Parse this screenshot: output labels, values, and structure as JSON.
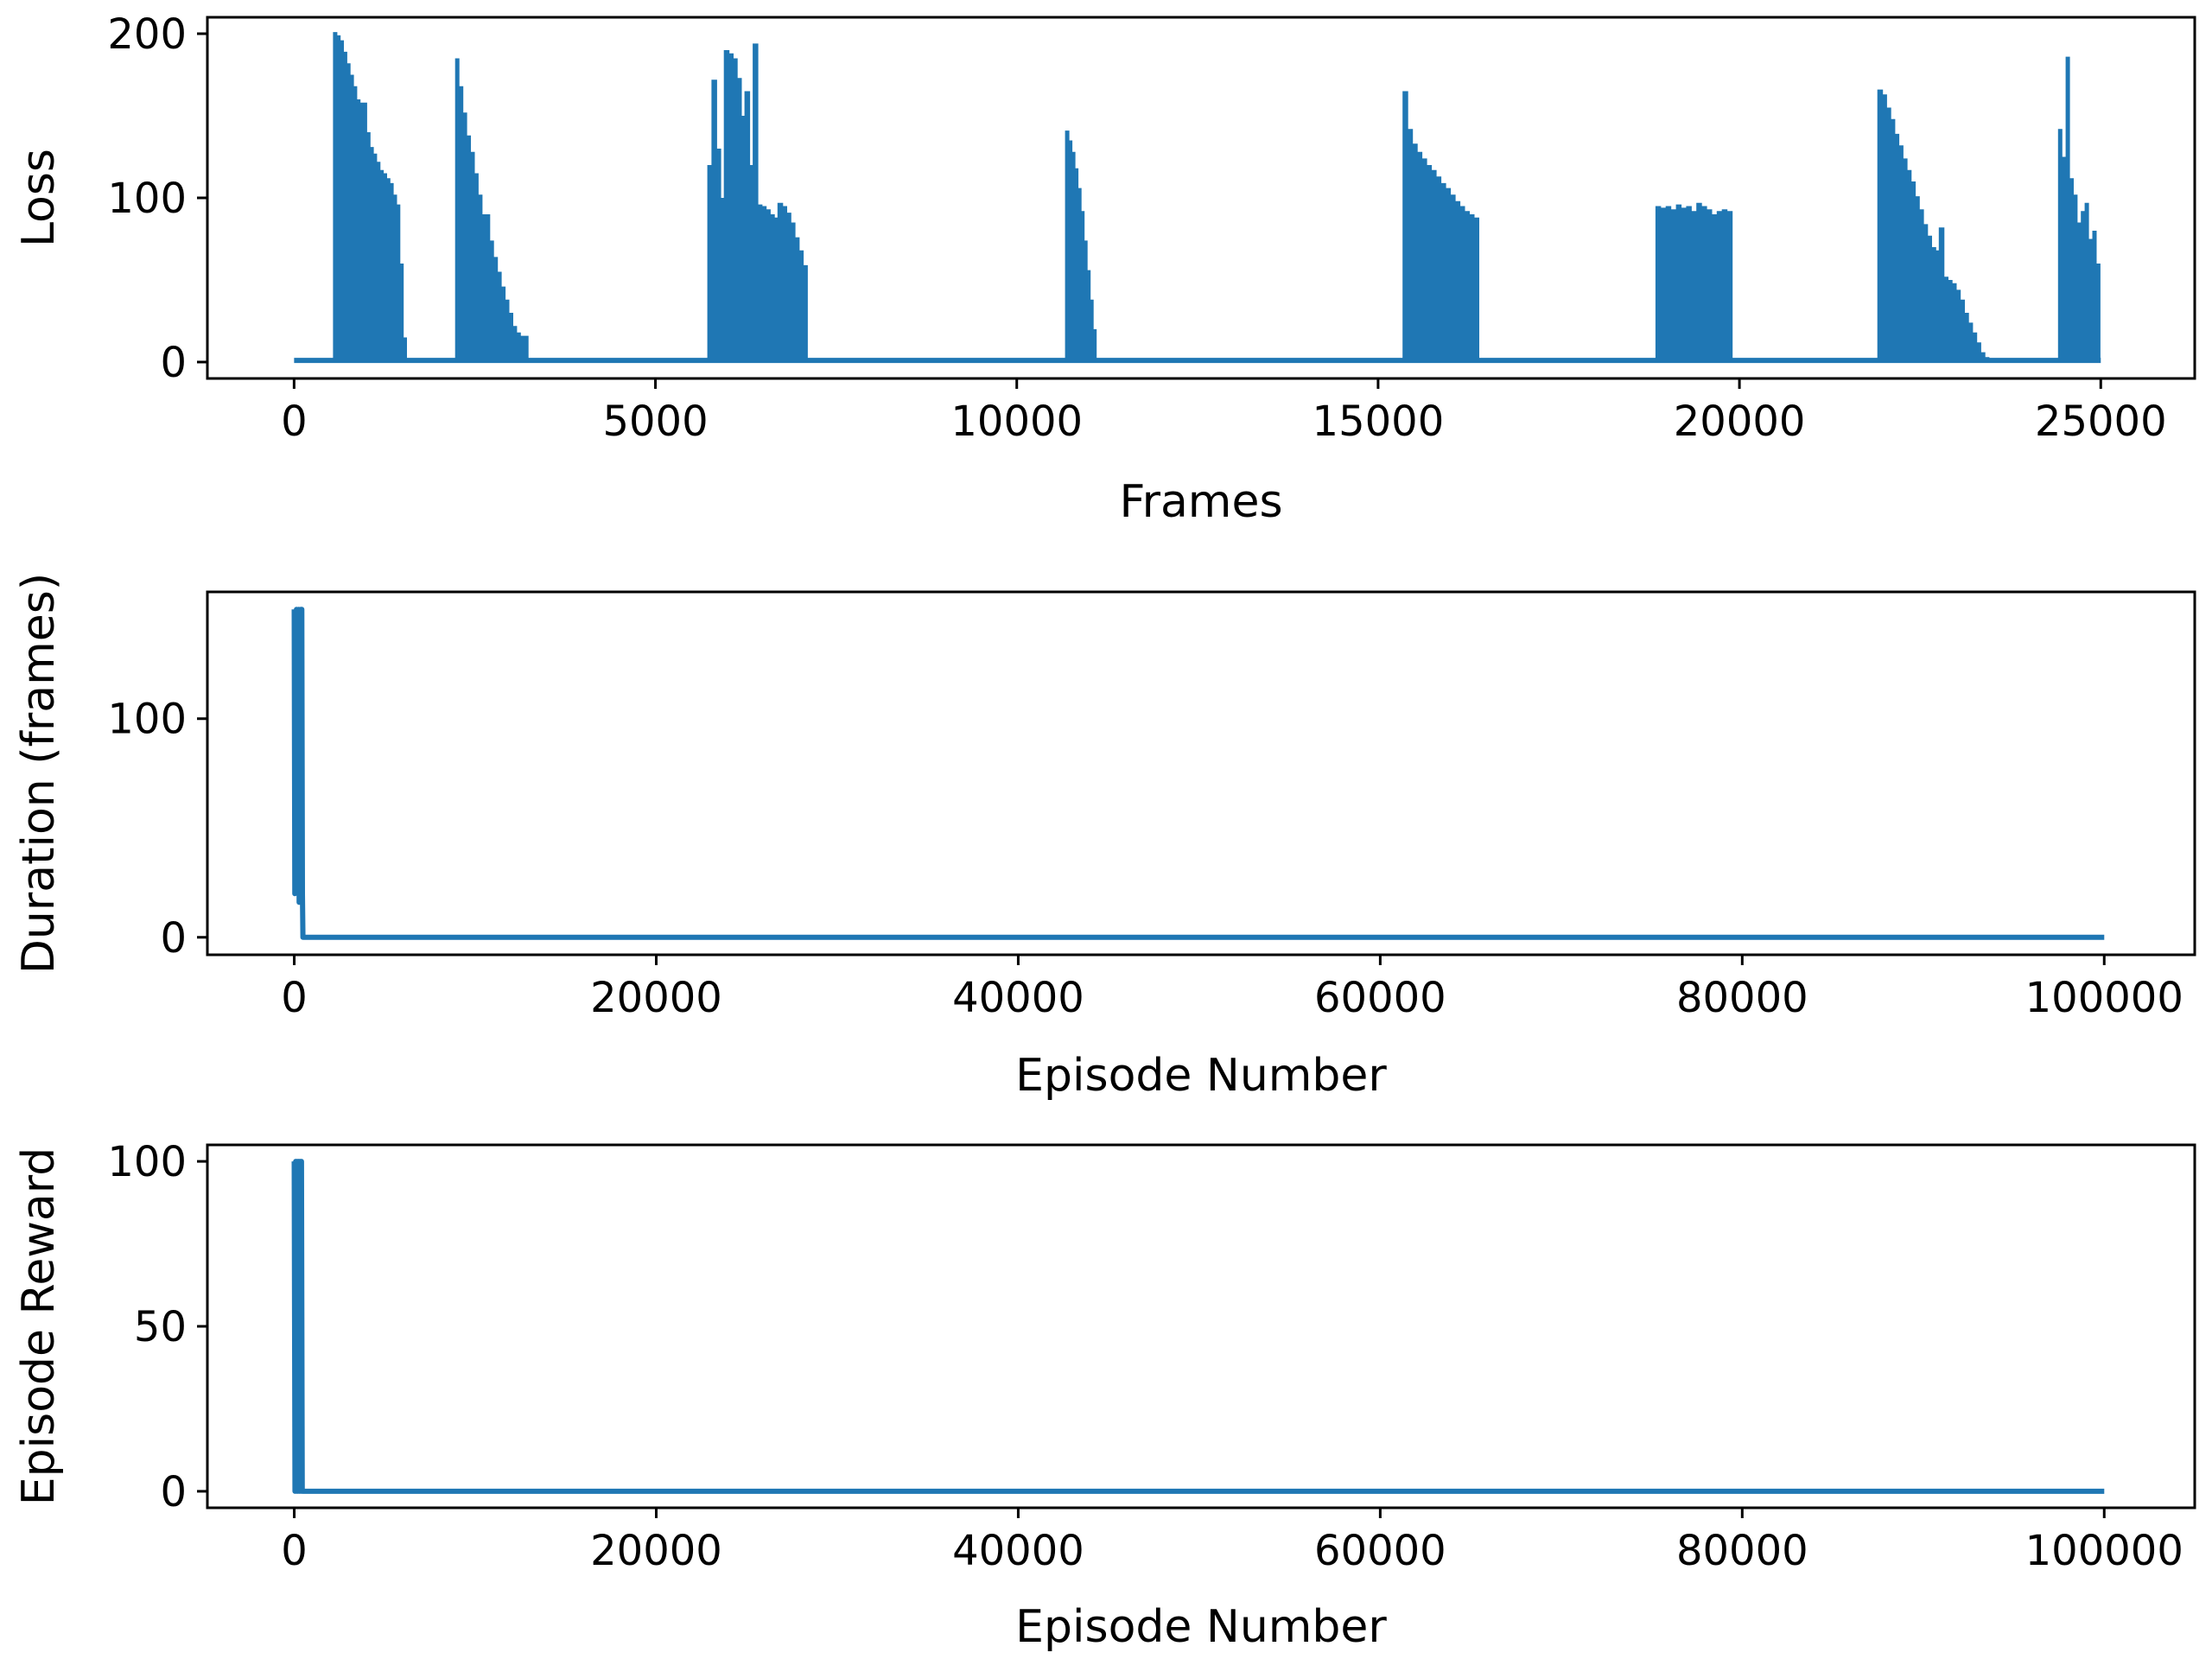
{
  "chart_data": [
    {
      "type": "line",
      "xlabel": "Frames",
      "ylabel": "Loss",
      "xlim": [
        -1200,
        26300
      ],
      "ylim": [
        -10,
        210
      ],
      "xticks": [
        0,
        5000,
        10000,
        15000,
        20000,
        25000
      ],
      "xtick_labels": [
        "0",
        "5000",
        "10000",
        "15000",
        "20000",
        "25000"
      ],
      "yticks": [
        0,
        100,
        200
      ],
      "ytick_labels": [
        "0",
        "100",
        "200"
      ],
      "grid": false,
      "legend": "none",
      "color": "#1f77b4",
      "baseline": 1,
      "bursts": [
        {
          "start": 550,
          "end": 1560,
          "peaks": [
            201,
            199,
            196,
            189,
            182,
            175,
            168,
            160,
            158,
            158,
            140,
            131,
            127,
            122,
            117,
            115,
            112,
            109,
            102,
            96,
            60,
            15
          ]
        },
        {
          "start": 2240,
          "end": 3250,
          "peaks": [
            185,
            168,
            152,
            138,
            128,
            115,
            102,
            90,
            90,
            74,
            64,
            55,
            46,
            38,
            30,
            22,
            18,
            16,
            16
          ]
        },
        {
          "start": 5730,
          "end": 7100,
          "peaks": [
            120,
            172,
            130,
            100,
            190,
            188,
            185,
            173,
            150,
            165,
            120,
            194,
            96,
            95,
            93,
            90,
            88,
            97,
            95,
            91,
            85,
            76,
            68,
            59
          ]
        },
        {
          "start": 10680,
          "end": 11100,
          "peaks": [
            141,
            135,
            128,
            118,
            106,
            92,
            74,
            56,
            38,
            20
          ]
        },
        {
          "start": 15350,
          "end": 16400,
          "peaks": [
            165,
            142,
            133,
            128,
            124,
            120,
            117,
            113,
            109,
            106,
            102,
            98,
            95,
            92,
            90,
            88
          ]
        },
        {
          "start": 18850,
          "end": 19910,
          "peaks": [
            95,
            94,
            95,
            93,
            96,
            94,
            95,
            92,
            97,
            95,
            93,
            90,
            92,
            93,
            92
          ]
        },
        {
          "start": 21920,
          "end": 23450,
          "peaks": [
            166,
            163,
            155,
            148,
            139,
            132,
            124,
            117,
            110,
            101,
            93,
            84,
            77,
            70,
            68,
            82,
            52,
            50,
            48,
            44,
            38,
            30,
            24,
            18,
            12,
            6,
            3
          ]
        },
        {
          "start": 24420,
          "end": 25000,
          "peaks": [
            142,
            125,
            186,
            112,
            102,
            85,
            92,
            97,
            75,
            80,
            60
          ]
        }
      ]
    },
    {
      "type": "line",
      "xlabel": "Episode Number",
      "ylabel": "Duration (frames)",
      "xlim": [
        -4800,
        105000
      ],
      "ylim": [
        -8,
        158
      ],
      "xticks": [
        0,
        20000,
        40000,
        60000,
        80000,
        100000
      ],
      "xtick_labels": [
        "0",
        "20000",
        "40000",
        "60000",
        "80000",
        "100000"
      ],
      "yticks": [
        0,
        100
      ],
      "ytick_labels": [
        "0",
        "100"
      ],
      "grid": false,
      "legend": "none",
      "color": "#1f77b4",
      "x": [
        0,
        30,
        60,
        90,
        120,
        150,
        180,
        210,
        240,
        270,
        300,
        330,
        360,
        390,
        420,
        450,
        480,
        1000,
        100000
      ],
      "y": [
        150,
        20,
        148,
        45,
        150,
        125,
        149,
        30,
        150,
        16,
        145,
        50,
        150,
        130,
        150,
        20,
        0,
        0,
        0
      ]
    },
    {
      "type": "line",
      "xlabel": "Episode Number",
      "ylabel": "Episode Reward",
      "xlim": [
        -4800,
        105000
      ],
      "ylim": [
        -5,
        105
      ],
      "xticks": [
        0,
        20000,
        40000,
        60000,
        80000,
        100000
      ],
      "xtick_labels": [
        "0",
        "20000",
        "40000",
        "60000",
        "80000",
        "100000"
      ],
      "yticks": [
        0,
        50,
        100
      ],
      "ytick_labels": [
        "0",
        "50",
        "100"
      ],
      "grid": false,
      "legend": "none",
      "color": "#1f77b4",
      "x": [
        0,
        40,
        80,
        120,
        160,
        200,
        240,
        280,
        320,
        360,
        400,
        440,
        1000,
        100000
      ],
      "y": [
        100,
        0,
        100,
        0,
        100,
        0,
        100,
        0,
        100,
        0,
        100,
        0,
        0,
        0
      ]
    }
  ]
}
